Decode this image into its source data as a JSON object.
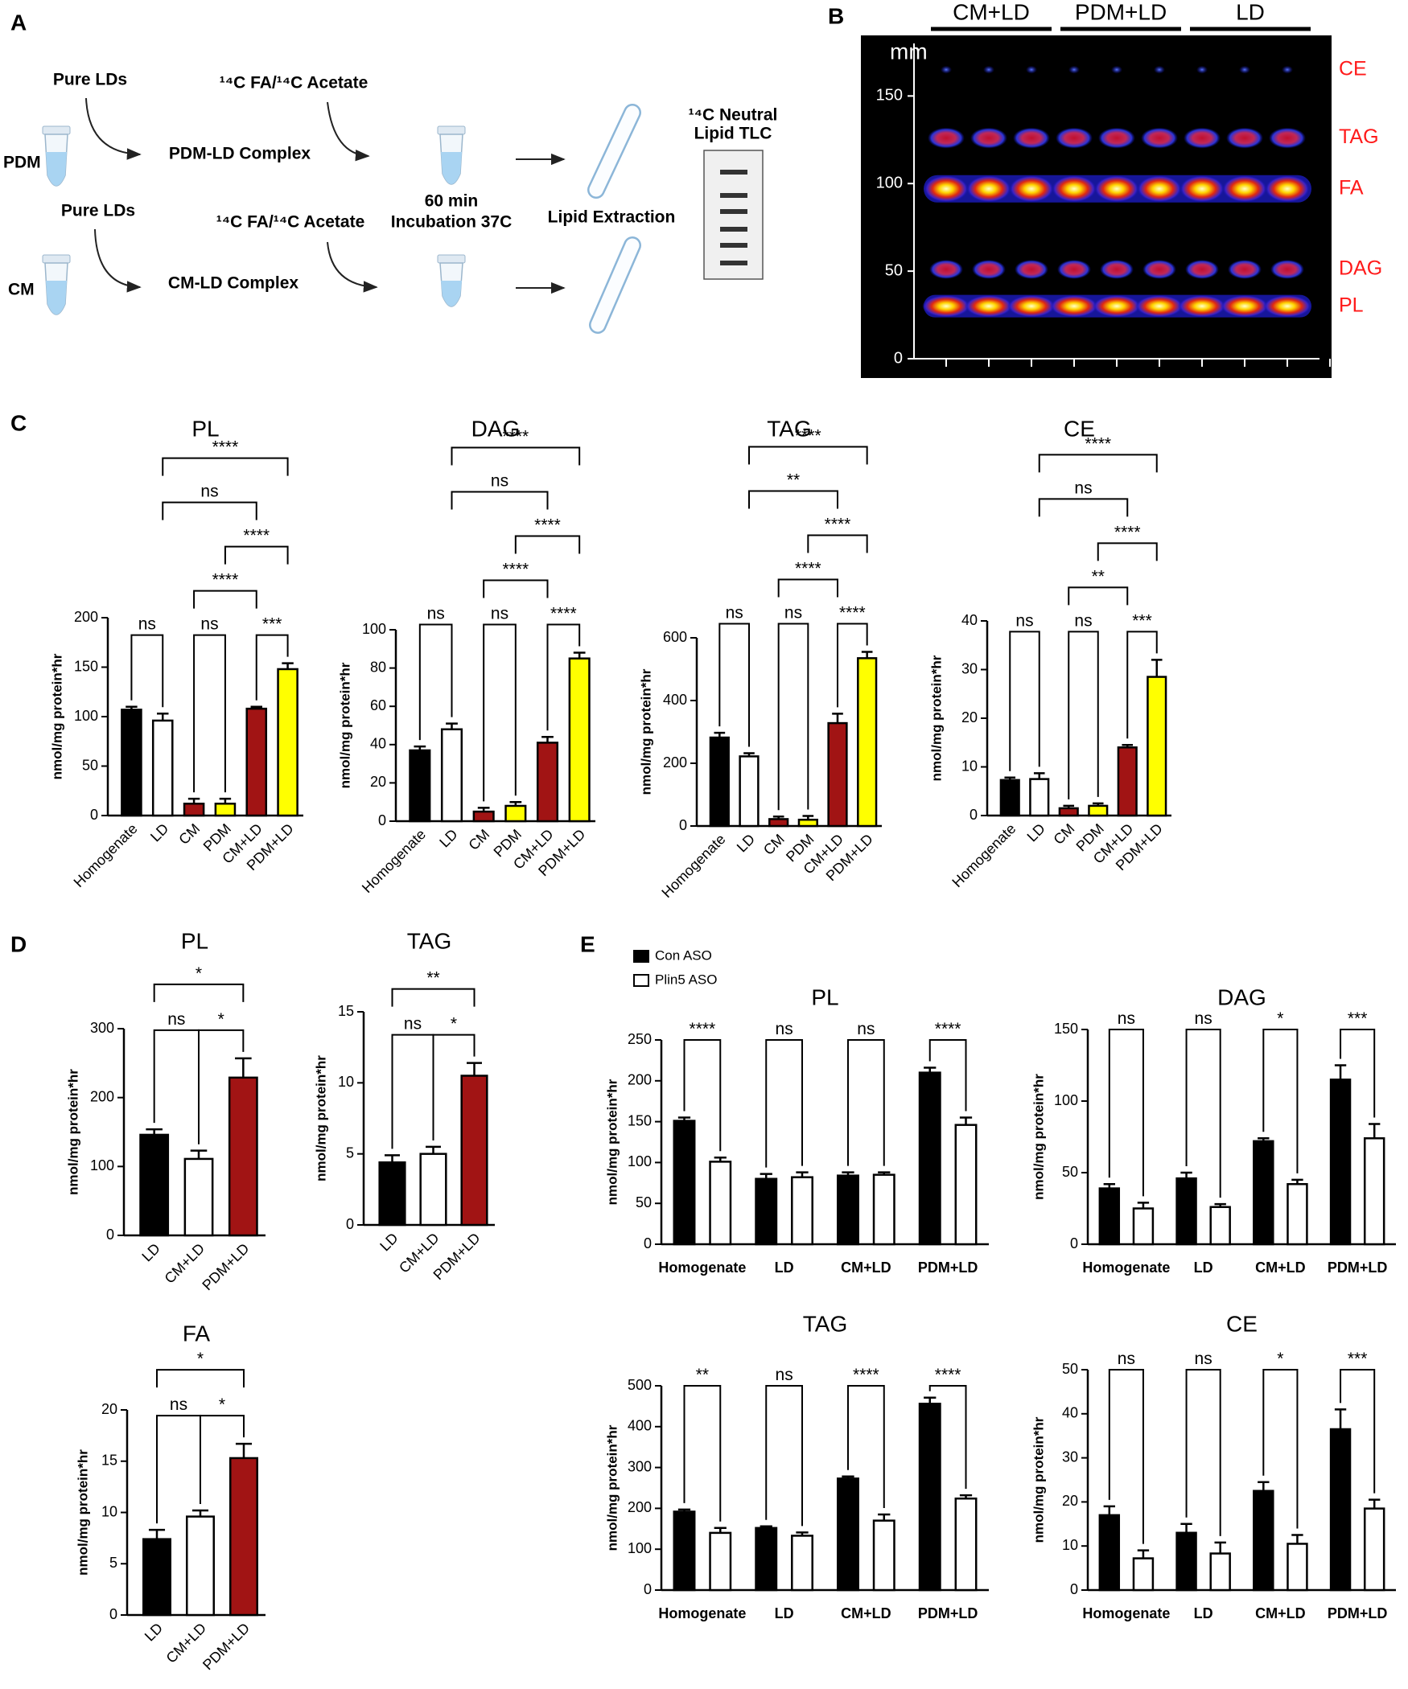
{
  "panel_labels": [
    "A",
    "B",
    "C",
    "D",
    "E"
  ],
  "diagram": {
    "pdm_label": "PDM",
    "cm_label": "CM",
    "pure_lds": [
      "Pure LDs",
      "Pure LDs"
    ],
    "tracer": [
      "¹⁴C FA/¹⁴C Acetate",
      "¹⁴C FA/¹⁴C Acetate"
    ],
    "complexes": [
      "PDM-LD Complex",
      "CM-LD Complex"
    ],
    "incubation": [
      "60 min",
      "Incubation 37C"
    ],
    "extraction": "Lipid Extraction",
    "tlc": [
      "¹⁴C Neutral",
      "Lipid TLC"
    ]
  },
  "tlc": {
    "lane_groups": [
      "CM+LD",
      "PDM+LD",
      "LD"
    ],
    "axis_label": "mm",
    "ylim": [
      0,
      180
    ],
    "yticks": [
      0,
      50,
      100,
      150
    ],
    "bands": [
      {
        "label": "CE",
        "position": 165
      },
      {
        "label": "TAG",
        "position": 126
      },
      {
        "label": "FA",
        "position": 97
      },
      {
        "label": "DAG",
        "position": 51
      },
      {
        "label": "PL",
        "position": 30
      }
    ]
  },
  "chart_data": [
    {
      "type": "bar",
      "title": "PL",
      "ylabel": "nmol/mg protein*hr",
      "categories": [
        "Homogenate",
        "LD",
        "CM",
        "PDM",
        "CM+LD",
        "PDM+LD"
      ],
      "values": [
        107,
        96,
        12,
        12,
        108,
        148
      ],
      "errors": [
        3,
        7,
        5,
        5,
        2,
        6
      ],
      "colors": [
        "#000000",
        "#ffffff",
        "#a11414",
        "#ffff00",
        "#a11414",
        "#ffff00"
      ],
      "ylim": [
        0,
        200
      ],
      "yticks": [
        0,
        50,
        100,
        150,
        200
      ],
      "brackets": [
        {
          "groups": [
            "Homogenate",
            "LD"
          ],
          "label": "ns"
        },
        {
          "groups": [
            "CM",
            "PDM"
          ],
          "label": "ns"
        },
        {
          "groups": [
            "CM+LD",
            "PDM+LD"
          ],
          "label": "***"
        },
        {
          "groups": [
            "CM",
            "CM+LD"
          ],
          "label": "****"
        },
        {
          "groups": [
            "PDM",
            "PDM+LD"
          ],
          "label": "****"
        },
        {
          "groups": [
            "LD",
            "CM+LD"
          ],
          "label": "ns"
        },
        {
          "groups": [
            "LD",
            "PDM+LD"
          ],
          "label": "****"
        }
      ]
    },
    {
      "type": "bar",
      "title": "DAG",
      "ylabel": "nmol/mg protein*hr",
      "categories": [
        "Homogenate",
        "LD",
        "CM",
        "PDM",
        "CM+LD",
        "PDM+LD"
      ],
      "values": [
        37,
        48,
        5,
        8,
        41,
        85
      ],
      "errors": [
        2,
        3,
        2,
        2,
        3,
        3
      ],
      "colors": [
        "#000000",
        "#ffffff",
        "#a11414",
        "#ffff00",
        "#a11414",
        "#ffff00"
      ],
      "ylim": [
        0,
        100
      ],
      "yticks": [
        0,
        20,
        40,
        60,
        80,
        100
      ],
      "brackets": [
        {
          "groups": [
            "Homogenate",
            "LD"
          ],
          "label": "ns"
        },
        {
          "groups": [
            "CM",
            "PDM"
          ],
          "label": "ns"
        },
        {
          "groups": [
            "CM+LD",
            "PDM+LD"
          ],
          "label": "****"
        },
        {
          "groups": [
            "CM",
            "CM+LD"
          ],
          "label": "****"
        },
        {
          "groups": [
            "PDM",
            "PDM+LD"
          ],
          "label": "****"
        },
        {
          "groups": [
            "LD",
            "CM+LD"
          ],
          "label": "ns"
        },
        {
          "groups": [
            "LD",
            "PDM+LD"
          ],
          "label": "****"
        }
      ]
    },
    {
      "type": "bar",
      "title": "TAG",
      "ylabel": "nmol/mg protein*hr",
      "categories": [
        "Homogenate",
        "LD",
        "CM",
        "PDM",
        "CM+LD",
        "PDM+LD"
      ],
      "values": [
        282,
        222,
        22,
        20,
        328,
        535
      ],
      "errors": [
        15,
        10,
        8,
        12,
        30,
        20
      ],
      "colors": [
        "#000000",
        "#ffffff",
        "#a11414",
        "#ffff00",
        "#a11414",
        "#ffff00"
      ],
      "ylim": [
        0,
        600
      ],
      "yticks": [
        0,
        200,
        400,
        600
      ],
      "brackets": [
        {
          "groups": [
            "Homogenate",
            "LD"
          ],
          "label": "ns"
        },
        {
          "groups": [
            "CM",
            "PDM"
          ],
          "label": "ns"
        },
        {
          "groups": [
            "CM+LD",
            "PDM+LD"
          ],
          "label": "****"
        },
        {
          "groups": [
            "CM",
            "CM+LD"
          ],
          "label": "****"
        },
        {
          "groups": [
            "PDM",
            "PDM+LD"
          ],
          "label": "****"
        },
        {
          "groups": [
            "LD",
            "CM+LD"
          ],
          "label": "**"
        },
        {
          "groups": [
            "LD",
            "PDM+LD"
          ],
          "label": "****"
        }
      ]
    },
    {
      "type": "bar",
      "title": "CE",
      "ylabel": "nmol/mg protein*hr",
      "categories": [
        "Homogenate",
        "LD",
        "CM",
        "PDM",
        "CM+LD",
        "PDM+LD"
      ],
      "values": [
        7.3,
        7.5,
        1.5,
        2,
        14,
        28.5
      ],
      "errors": [
        0.5,
        1.2,
        0.5,
        0.5,
        0.5,
        3.5
      ],
      "colors": [
        "#000000",
        "#ffffff",
        "#a11414",
        "#ffff00",
        "#a11414",
        "#ffff00"
      ],
      "ylim": [
        0,
        40
      ],
      "yticks": [
        0,
        10,
        20,
        30,
        40
      ],
      "brackets": [
        {
          "groups": [
            "Homogenate",
            "LD"
          ],
          "label": "ns"
        },
        {
          "groups": [
            "CM",
            "PDM"
          ],
          "label": "ns"
        },
        {
          "groups": [
            "CM+LD",
            "PDM+LD"
          ],
          "label": "***"
        },
        {
          "groups": [
            "CM",
            "CM+LD"
          ],
          "label": "**"
        },
        {
          "groups": [
            "PDM",
            "PDM+LD"
          ],
          "label": "****"
        },
        {
          "groups": [
            "LD",
            "CM+LD"
          ],
          "label": "ns"
        },
        {
          "groups": [
            "LD",
            "PDM+LD"
          ],
          "label": "****"
        }
      ]
    },
    {
      "type": "bar",
      "title": "PL",
      "ylabel": "nmol/mg protein*hr",
      "categories": [
        "LD",
        "CM+LD",
        "PDM+LD"
      ],
      "values": [
        146,
        111,
        229
      ],
      "errors": [
        8,
        12,
        28
      ],
      "colors": [
        "#000000",
        "#ffffff",
        "#a11414"
      ],
      "ylim": [
        0,
        300
      ],
      "yticks": [
        0,
        100,
        200,
        300
      ],
      "brackets": [
        {
          "groups": [
            "LD",
            "CM+LD"
          ],
          "label": "ns"
        },
        {
          "groups": [
            "CM+LD",
            "PDM+LD"
          ],
          "label": "*"
        },
        {
          "groups": [
            "LD",
            "PDM+LD"
          ],
          "label": "*"
        }
      ]
    },
    {
      "type": "bar",
      "title": "TAG",
      "ylabel": "nmol/mg protein*hr",
      "categories": [
        "LD",
        "CM+LD",
        "PDM+LD"
      ],
      "values": [
        4.4,
        5.0,
        10.5
      ],
      "errors": [
        0.5,
        0.5,
        0.9
      ],
      "colors": [
        "#000000",
        "#ffffff",
        "#a11414"
      ],
      "ylim": [
        0,
        15
      ],
      "yticks": [
        0,
        5,
        10,
        15
      ],
      "brackets": [
        {
          "groups": [
            "LD",
            "CM+LD"
          ],
          "label": "ns"
        },
        {
          "groups": [
            "CM+LD",
            "PDM+LD"
          ],
          "label": "*"
        },
        {
          "groups": [
            "LD",
            "PDM+LD"
          ],
          "label": "**"
        }
      ]
    },
    {
      "type": "bar",
      "title": "FA",
      "ylabel": "nmol/mg protein*hr",
      "categories": [
        "LD",
        "CM+LD",
        "PDM+LD"
      ],
      "values": [
        7.4,
        9.6,
        15.3
      ],
      "errors": [
        0.9,
        0.6,
        1.4
      ],
      "colors": [
        "#000000",
        "#ffffff",
        "#a11414"
      ],
      "ylim": [
        0,
        20
      ],
      "yticks": [
        0,
        5,
        10,
        15,
        20
      ],
      "brackets": [
        {
          "groups": [
            "LD",
            "CM+LD"
          ],
          "label": "ns"
        },
        {
          "groups": [
            "CM+LD",
            "PDM+LD"
          ],
          "label": "*"
        },
        {
          "groups": [
            "LD",
            "PDM+LD"
          ],
          "label": "*"
        }
      ]
    },
    {
      "type": "grouped_bar",
      "title": "PL",
      "ylabel": "nmol/mg protein*hr",
      "categories": [
        "Homogenate",
        "LD",
        "CM+LD",
        "PDM+LD"
      ],
      "series": [
        {
          "name": "Con ASO",
          "color": "#000000",
          "values": [
            151,
            80,
            84,
            210
          ],
          "errors": [
            4,
            6,
            4,
            6
          ]
        },
        {
          "name": "Plin5 ASO",
          "color": "#ffffff",
          "values": [
            101,
            82,
            85,
            146
          ],
          "errors": [
            5,
            6,
            3,
            9
          ]
        }
      ],
      "ylim": [
        0,
        250
      ],
      "yticks": [
        0,
        50,
        100,
        150,
        200,
        250
      ],
      "significance": [
        "****",
        "ns",
        "ns",
        "****"
      ]
    },
    {
      "type": "grouped_bar",
      "title": "DAG",
      "ylabel": "nmol/mg protein*hr",
      "categories": [
        "Homogenate",
        "LD",
        "CM+LD",
        "PDM+LD"
      ],
      "series": [
        {
          "color": "#000000",
          "values": [
            39,
            46,
            72,
            115
          ],
          "errors": [
            3,
            4,
            2,
            10
          ]
        },
        {
          "color": "#ffffff",
          "values": [
            25,
            26,
            42,
            74
          ],
          "errors": [
            4,
            2,
            3,
            10
          ]
        }
      ],
      "ylim": [
        0,
        150
      ],
      "yticks": [
        0,
        50,
        100,
        150
      ],
      "significance": [
        "ns",
        "ns",
        "*",
        "***"
      ]
    },
    {
      "type": "grouped_bar",
      "title": "TAG",
      "ylabel": "nmol/mg protein*hr",
      "categories": [
        "Homogenate",
        "LD",
        "CM+LD",
        "PDM+LD"
      ],
      "series": [
        {
          "color": "#000000",
          "values": [
            192,
            152,
            273,
            456
          ],
          "errors": [
            5,
            4,
            5,
            15
          ]
        },
        {
          "color": "#ffffff",
          "values": [
            140,
            133,
            170,
            224
          ],
          "errors": [
            12,
            8,
            15,
            8
          ]
        }
      ],
      "ylim": [
        0,
        500
      ],
      "yticks": [
        0,
        100,
        200,
        300,
        400,
        500
      ],
      "significance": [
        "**",
        "ns",
        "****",
        "****"
      ]
    },
    {
      "type": "grouped_bar",
      "title": "CE",
      "ylabel": "nmol/mg protein*hr",
      "categories": [
        "Homogenate",
        "LD",
        "CM+LD",
        "PDM+LD"
      ],
      "series": [
        {
          "color": "#000000",
          "values": [
            17,
            13,
            22.5,
            36.5
          ],
          "errors": [
            2,
            2,
            2,
            4.5
          ]
        },
        {
          "color": "#ffffff",
          "values": [
            7.2,
            8.3,
            10.5,
            18.5
          ],
          "errors": [
            1.8,
            2.5,
            2,
            2
          ]
        }
      ],
      "ylim": [
        0,
        50
      ],
      "yticks": [
        0,
        10,
        20,
        30,
        40,
        50
      ],
      "significance": [
        "ns",
        "ns",
        "*",
        "***"
      ]
    }
  ]
}
